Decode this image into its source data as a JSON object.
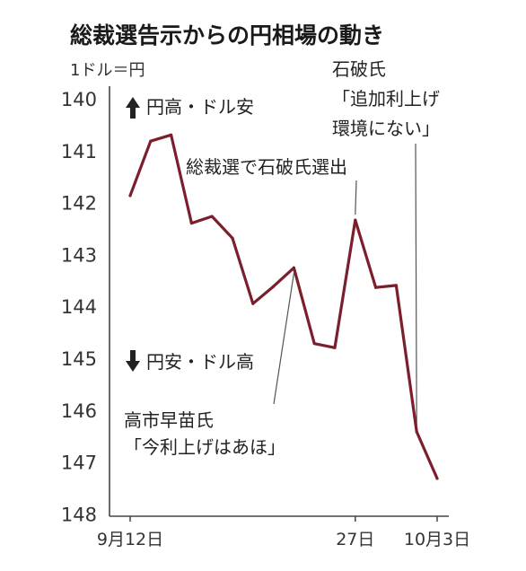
{
  "chart_data": {
    "type": "line",
    "title": "総裁選告示からの円相場の動き",
    "unit_label": "1ドル＝円",
    "y_axis": {
      "min": 140,
      "max": 148,
      "ticks": [
        140,
        141,
        142,
        143,
        144,
        145,
        146,
        147,
        148
      ],
      "inverted": true
    },
    "x_tick_labels": [
      "9月12日",
      "27日",
      "10月3日"
    ],
    "series": [
      {
        "values": [
          141.85,
          140.8,
          140.68,
          142.38,
          142.25,
          142.67,
          143.93,
          143.6,
          143.24,
          144.7,
          144.78,
          142.32,
          143.62,
          143.58,
          146.4,
          147.3
        ],
        "color": "#7a1f2b"
      }
    ],
    "direction_labels": {
      "up": "円高・ドル安",
      "down": "円安・ドル高"
    },
    "annotations": [
      {
        "lines": [
          "高市早苗氏",
          "「今利上げはあほ」"
        ],
        "point_index": 8
      },
      {
        "lines": [
          "総裁選で石破氏選出"
        ],
        "point_index": 11
      },
      {
        "lines": [
          "石破氏",
          "「追加利上げ",
          "環境にない」"
        ],
        "point_index": 14
      }
    ]
  }
}
